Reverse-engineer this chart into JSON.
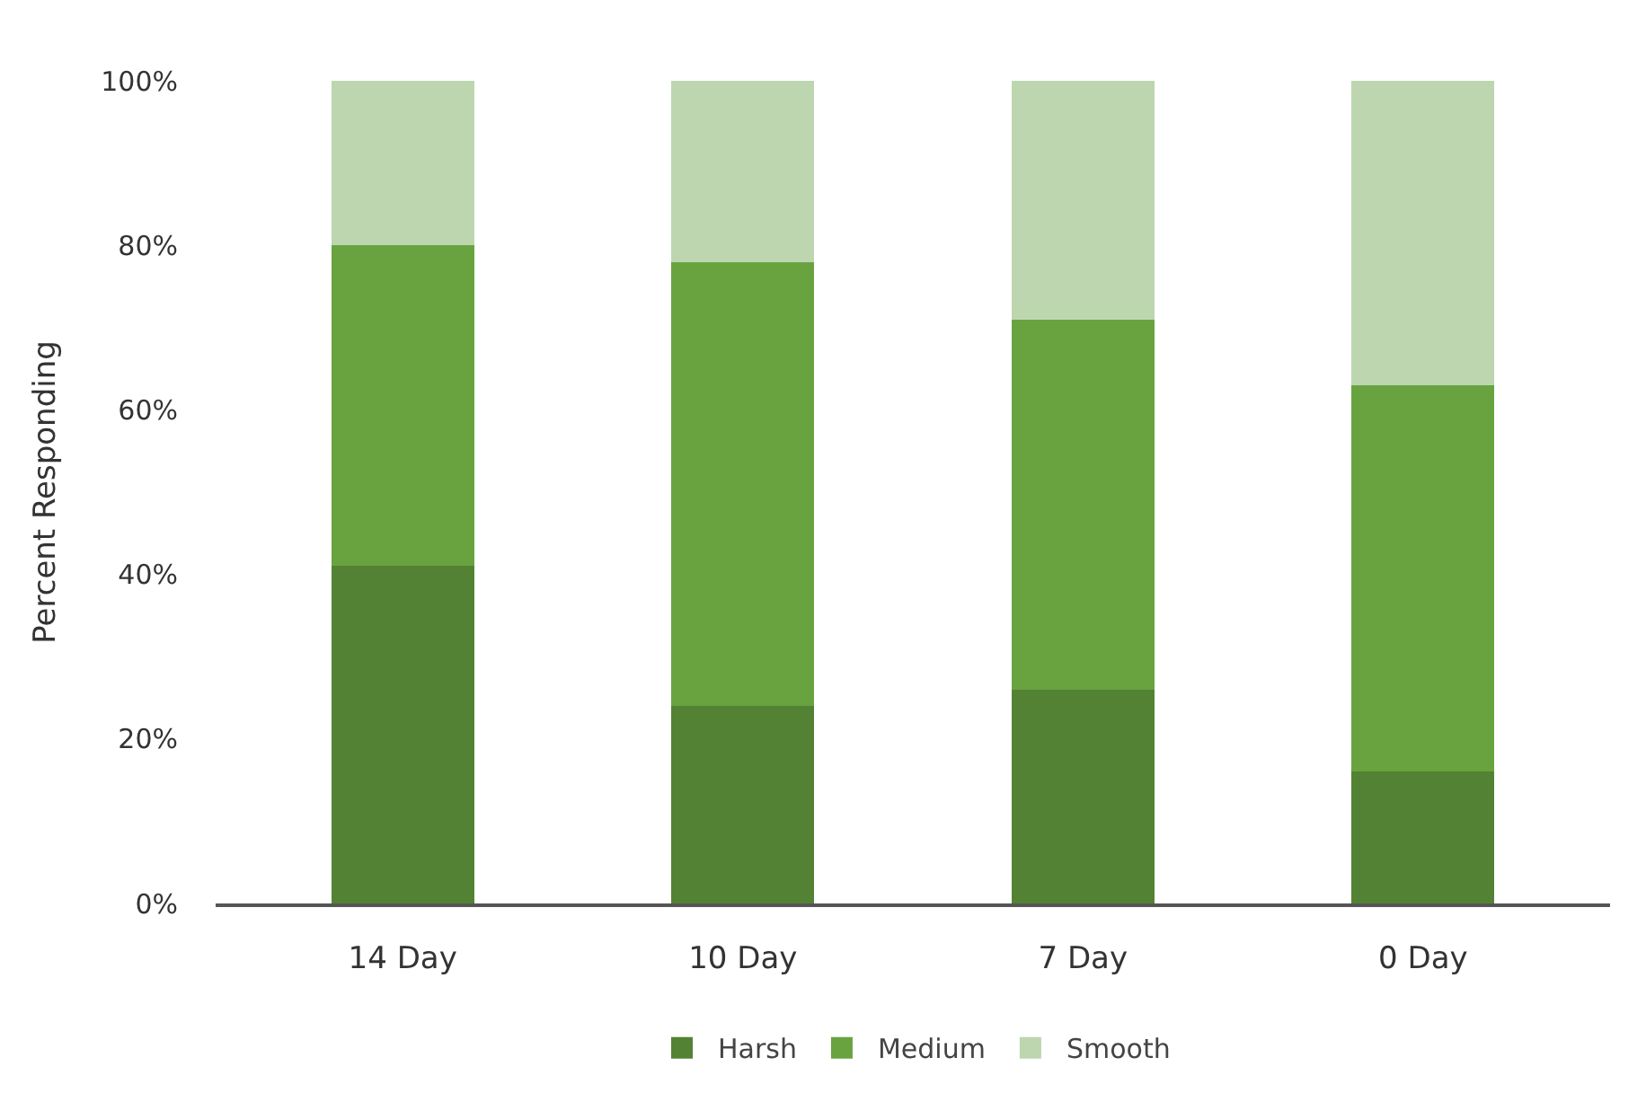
{
  "chart_data": {
    "type": "bar",
    "stacked": true,
    "ylabel": "Percent Responding",
    "categories": [
      "14 Day",
      "10 Day",
      "7 Day",
      "0 Day"
    ],
    "series": [
      {
        "name": "Harsh",
        "color": "#538234",
        "values": [
          41,
          24,
          26,
          16
        ]
      },
      {
        "name": "Medium",
        "color": "#68a340",
        "values": [
          39,
          54,
          45,
          47
        ]
      },
      {
        "name": "Smooth",
        "color": "#bdd6b0",
        "values": [
          20,
          22,
          29,
          37
        ]
      }
    ],
    "ylim": [
      0,
      100
    ],
    "yticks": [
      {
        "value": 0,
        "label": "0%"
      },
      {
        "value": 20,
        "label": "20%"
      },
      {
        "value": 40,
        "label": "40%"
      },
      {
        "value": 60,
        "label": "60%"
      },
      {
        "value": 80,
        "label": "80%"
      },
      {
        "value": 100,
        "label": "100%"
      }
    ],
    "grid": false,
    "legend": "bottom"
  }
}
